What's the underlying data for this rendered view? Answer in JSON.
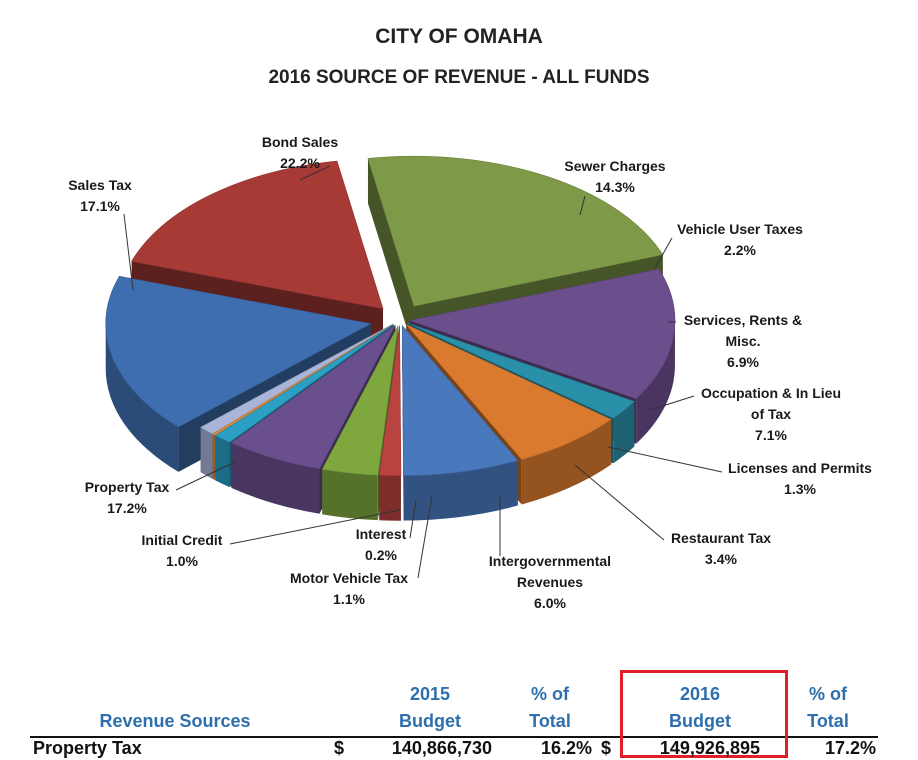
{
  "header": {
    "title": "CITY OF OMAHA",
    "subtitle": "2016 SOURCE OF REVENUE - ALL FUNDS"
  },
  "chart_data": {
    "type": "pie",
    "style": "3d-exploded",
    "slices": [
      {
        "label": "Bond Sales",
        "value": 22.2,
        "display": "22.2%",
        "color": "#7e9a48"
      },
      {
        "label": "Sewer Charges",
        "value": 14.3,
        "display": "14.3%",
        "color": "#6b4e8c"
      },
      {
        "label": "Vehicle User Taxes",
        "value": 2.2,
        "display": "2.2%",
        "color": "#2a8fa8"
      },
      {
        "label": "Services, Rents & Misc.",
        "value": 6.9,
        "display": "6.9%",
        "color": "#d97a2e"
      },
      {
        "label": "Occupation & In Lieu of Tax",
        "value": 7.1,
        "display": "7.1%",
        "color": "#4a78bd"
      },
      {
        "label": "Licenses and Permits",
        "value": 1.3,
        "display": "1.3%",
        "color": "#b8433f"
      },
      {
        "label": "Restaurant Tax",
        "value": 3.4,
        "display": "3.4%",
        "color": "#7ea83e"
      },
      {
        "label": "Intergovernmental Revenues",
        "value": 6.0,
        "display": "6.0%",
        "color": "#6a4f8f"
      },
      {
        "label": "Motor Vehicle Tax",
        "value": 1.1,
        "display": "1.1%",
        "color": "#2b9fc4"
      },
      {
        "label": "Interest",
        "value": 0.2,
        "display": "0.2%",
        "color": "#e08a3c"
      },
      {
        "label": "Initial Credit",
        "value": 1.0,
        "display": "1.0%",
        "color": "#a9b4d8"
      },
      {
        "label": "Property Tax",
        "value": 17.2,
        "display": "17.2%",
        "color": "#3f6eb0"
      },
      {
        "label": "Sales Tax",
        "value": 17.1,
        "display": "17.1%",
        "color": "#a83a36"
      }
    ],
    "label_lines": {
      "Bond Sales": [
        "Bond Sales",
        "22.2%"
      ],
      "Sewer Charges": [
        "Sewer Charges",
        "14.3%"
      ],
      "Vehicle User Taxes": [
        "Vehicle User Taxes",
        "2.2%"
      ],
      "Services, Rents & Misc.": [
        "Services, Rents &",
        "Misc.",
        "6.9%"
      ],
      "Occupation & In Lieu of Tax": [
        "Occupation & In Lieu",
        "of Tax",
        "7.1%"
      ],
      "Licenses and Permits": [
        "Licenses and Permits",
        "1.3%"
      ],
      "Restaurant Tax": [
        "Restaurant Tax",
        "3.4%"
      ],
      "Intergovernmental Revenues": [
        "Intergovernmental",
        "Revenues",
        "6.0%"
      ],
      "Motor Vehicle Tax": [
        "Motor Vehicle Tax",
        "1.1%"
      ],
      "Interest": [
        "Interest",
        "0.2%"
      ],
      "Initial Credit": [
        "Initial Credit",
        "1.0%"
      ],
      "Property Tax": [
        "Property Tax",
        "17.2%"
      ],
      "Sales Tax": [
        "Sales Tax",
        "17.1%"
      ]
    }
  },
  "table": {
    "col_source": "Revenue Sources",
    "col_2015_line1": "2015",
    "col_2015_line2": "Budget",
    "col_pct1_line1": "% of",
    "col_pct1_line2": "Total",
    "col_2016_line1": "2016",
    "col_2016_line2": "Budget",
    "col_pct2_line1": "% of",
    "col_pct2_line2": "Total",
    "rows": [
      {
        "source": "Property Tax",
        "currency1": "$",
        "budget_2015": "140,866,730",
        "pct_2015": "16.2%",
        "currency2": "$",
        "budget_2016": "149,926,895",
        "pct_2016": "17.2%"
      }
    ],
    "highlight_color": "#e01f2a",
    "header_color": "#2e6fad"
  }
}
